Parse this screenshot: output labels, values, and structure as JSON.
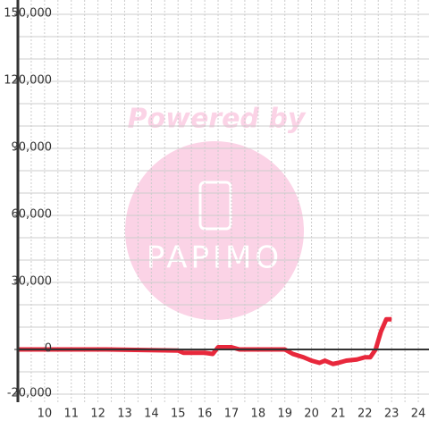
{
  "chart_data": {
    "type": "line",
    "annotations": [
      "Powered by",
      "PAPIMO"
    ],
    "x": [
      9,
      12.3,
      15,
      15.2,
      16,
      16.3,
      16.5,
      17,
      17.3,
      19,
      19.3,
      19.7,
      20,
      20.3,
      20.5,
      20.8,
      21,
      21.3,
      21.7,
      22,
      22.2,
      22.4,
      22.6,
      22.8,
      23
    ],
    "series": [
      {
        "color": "#e8283c",
        "values": [
          0,
          0,
          -500,
          -1500,
          -1500,
          -2000,
          1000,
          1000,
          0,
          0,
          -2000,
          -3500,
          -5000,
          -6000,
          -5000,
          -6500,
          -6000,
          -5000,
          -4500,
          -3500,
          -3500,
          0,
          8000,
          13500,
          13500
        ]
      }
    ],
    "xlim": [
      9,
      24.4
    ],
    "xticks": [
      10,
      11,
      12,
      13,
      14,
      15,
      16,
      17,
      18,
      19,
      20,
      21,
      22,
      23,
      24
    ],
    "ylim": [
      -20000,
      150000
    ],
    "yticks": [
      {
        "value": -20000,
        "label": "-20,000"
      },
      0,
      {
        "value": 30000,
        "label": "30,000"
      },
      {
        "value": 60000,
        "label": "60,000"
      },
      {
        "value": 90000,
        "label": "90,000"
      },
      {
        "value": 120000,
        "label": "120,000"
      },
      {
        "value": 150000,
        "label": "150,000"
      }
    ],
    "grid": true
  }
}
